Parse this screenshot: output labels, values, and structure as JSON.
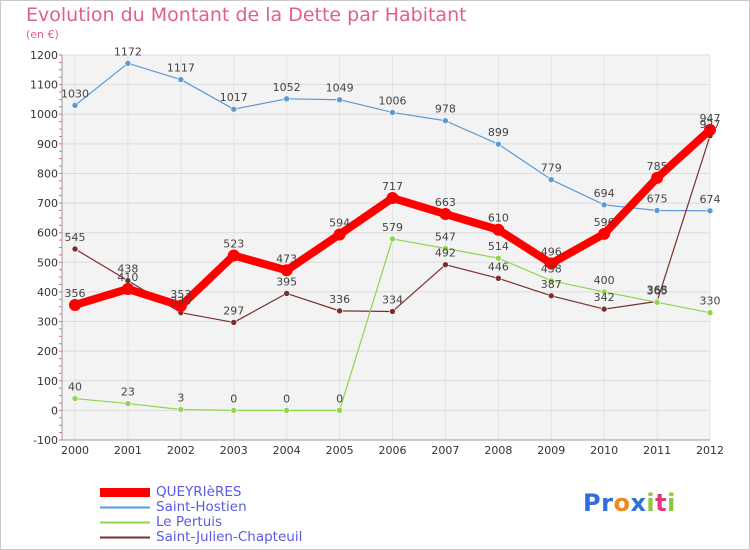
{
  "title": "Evolution du Montant de la Dette par Habitant",
  "subtitle": "(en €)",
  "logo": {
    "text": "Proxiti",
    "letters": [
      {
        "char": "P",
        "color": "#2f6fd6"
      },
      {
        "char": "r",
        "color": "#2f6fd6"
      },
      {
        "char": "o",
        "color": "#f08a1c"
      },
      {
        "char": "x",
        "color": "#2f6fd6"
      },
      {
        "char": "i",
        "color": "#8cc63f"
      },
      {
        "char": "t",
        "color": "#e03a7a"
      },
      {
        "char": "i",
        "color": "#8cc63f"
      }
    ]
  },
  "chart_data": {
    "type": "line",
    "x": [
      "2000",
      "2001",
      "2002",
      "2003",
      "2004",
      "2005",
      "2006",
      "2007",
      "2008",
      "2009",
      "2010",
      "2011",
      "2012"
    ],
    "ylim": [
      -100,
      1200
    ],
    "yticks": [
      "-100",
      "0",
      "100",
      "200",
      "300",
      "400",
      "500",
      "600",
      "700",
      "800",
      "900",
      "1000",
      "1100",
      "1200"
    ],
    "grid": true,
    "legend_position": "bottom-left",
    "series": [
      {
        "name": "QUEYRIèRES",
        "color": "#ff0000",
        "values": [
          356,
          410,
          353,
          523,
          473,
          594,
          717,
          663,
          610,
          496,
          596,
          785,
          947
        ],
        "labels": [
          "356",
          "410",
          "353",
          "523",
          "473",
          "594",
          "717",
          "663",
          "610",
          "496",
          "596",
          "785",
          "947"
        ]
      },
      {
        "name": "Saint-Hostien",
        "color": "#5b9bd5",
        "values": [
          1030,
          1172,
          1117,
          1017,
          1052,
          1049,
          1006,
          978,
          899,
          779,
          694,
          675,
          674
        ],
        "labels": [
          "1030",
          "1172",
          "1117",
          "1017",
          "1052",
          "1049",
          "1006",
          "978",
          "899",
          "779",
          "694",
          "675",
          "674"
        ]
      },
      {
        "name": "Le Pertuis",
        "color": "#8fd44f",
        "values": [
          40,
          23,
          3,
          0,
          0,
          0,
          579,
          547,
          514,
          438,
          400,
          365,
          330
        ],
        "labels": [
          "40",
          "23",
          "3",
          "0",
          "0",
          "0",
          "579",
          "547",
          "514",
          "438",
          "400",
          "365",
          "330"
        ]
      },
      {
        "name": "Saint-Julien-Chapteuil",
        "color": "#7a2f2f",
        "values": [
          545,
          438,
          330,
          297,
          395,
          336,
          334,
          492,
          446,
          387,
          342,
          368,
          927
        ],
        "labels": [
          "545",
          "438",
          "330",
          "297",
          "395",
          "336",
          "334",
          "492",
          "446",
          "387",
          "342",
          "368",
          "927"
        ]
      }
    ]
  }
}
